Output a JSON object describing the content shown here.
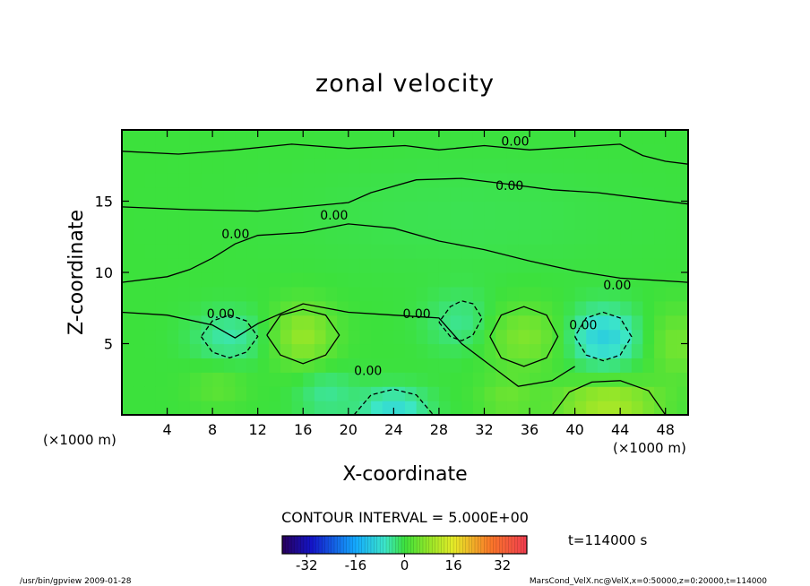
{
  "chart_data": {
    "type": "heatmap",
    "title": "zonal velocity",
    "xlabel": "X-coordinate",
    "ylabel": "Z-coordinate",
    "x_unit_left": "(×1000 m)",
    "x_unit_right": "(×1000 m)",
    "xlim": [
      0,
      50
    ],
    "ylim": [
      0,
      20
    ],
    "x_ticks": [
      4,
      8,
      12,
      16,
      20,
      24,
      28,
      32,
      36,
      40,
      44,
      48
    ],
    "y_ticks": [
      5,
      10,
      15
    ],
    "contour_interval_text": "CONTOUR INTERVAL = 5.000E+00",
    "time_text": "t=114000 s",
    "contour_label": "0.00",
    "colorbar": {
      "range": [
        -40,
        40
      ],
      "ticks": [
        -32,
        -16,
        0,
        16,
        32
      ]
    },
    "features": [
      {
        "x": 9.5,
        "z": 5.5,
        "rx": 3.2,
        "rz": 1.8,
        "value": -5
      },
      {
        "x": 16.0,
        "z": 5.6,
        "rx": 2.8,
        "rz": 2.2,
        "value": 8
      },
      {
        "x": 24.0,
        "z": 0.5,
        "rx": 3.0,
        "rz": 1.4,
        "value": -8
      },
      {
        "x": 30.0,
        "z": 6.5,
        "rx": 3.0,
        "rz": 2.0,
        "value": -4
      },
      {
        "x": 35.5,
        "z": 5.5,
        "rx": 3.5,
        "rz": 2.2,
        "value": 6
      },
      {
        "x": 42.5,
        "z": 5.5,
        "rx": 3.0,
        "rz": 2.0,
        "value": -10
      },
      {
        "x": 43.0,
        "z": 0.8,
        "rx": 4.5,
        "rz": 1.5,
        "value": 10
      },
      {
        "x": 49.0,
        "z": 5.0,
        "rx": 2.5,
        "rz": 2.5,
        "value": 5
      },
      {
        "x": 34.0,
        "z": 1.2,
        "rx": 2.5,
        "rz": 1.5,
        "value": 4
      },
      {
        "x": 18.0,
        "z": 1.5,
        "rx": 2.5,
        "rz": 1.8,
        "value": -4
      },
      {
        "x": 8.5,
        "z": 2.0,
        "rx": 2.5,
        "rz": 1.5,
        "value": 3
      },
      {
        "x": 30.0,
        "z": 14.0,
        "rx": 15.0,
        "rz": 4.0,
        "value": -1
      }
    ]
  },
  "footer": {
    "left": "/usr/bin/gpview   2009-01-28",
    "right": "MarsCond_VelX.nc@VelX,x=0:50000,z=0:20000,t=114000"
  }
}
